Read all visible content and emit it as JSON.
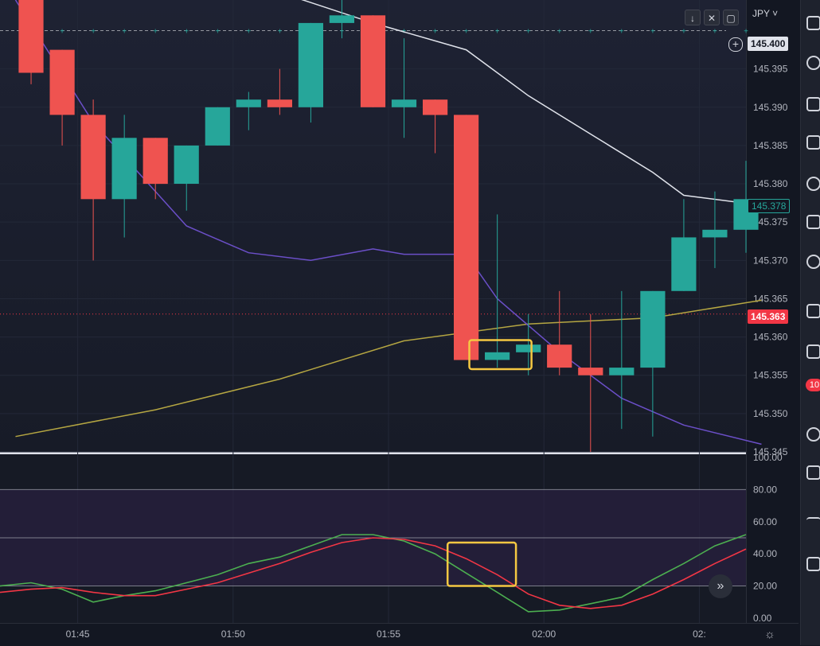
{
  "currency_label": "JPY",
  "chart_controls": {
    "down_icon": "arrow-down-icon",
    "collapse_icon": "collapse-icon",
    "fullscreen_icon": "fullscreen-icon"
  },
  "price_labels": {
    "crosshair_price": "145.400",
    "current_price": "145.378",
    "marker_price": "145.363"
  },
  "colors": {
    "bull": "#26a69a",
    "bear": "#ef5350",
    "ma_fast": "#6b4fc8",
    "ma_slow": "#e0e3eb",
    "ma_long": "#b5a642",
    "osc_k": "#4caf50",
    "osc_d": "#f23645",
    "highlight": "#f5c842",
    "current_price_bg": "#f23645"
  },
  "badge_count": "10",
  "chart_data": [
    {
      "type": "candlestick",
      "name": "price",
      "time_labels": [
        "01:45",
        "01:50",
        "01:55",
        "02:00",
        "02:"
      ],
      "y_ticks": [
        "145.395",
        "145.390",
        "145.385",
        "145.380",
        "145.375",
        "145.370",
        "145.365",
        "145.360",
        "145.355",
        "145.350",
        "145.345"
      ],
      "ylim": [
        145.345,
        145.404
      ],
      "bar_index_range": [
        -0.5,
        23.5
      ],
      "candles": [
        {
          "o": 145.4045,
          "h": 145.4045,
          "l": 145.393,
          "c": 145.3945
        },
        {
          "o": 145.3975,
          "h": 145.3975,
          "l": 145.385,
          "c": 145.389
        },
        {
          "o": 145.389,
          "h": 145.391,
          "l": 145.37,
          "c": 145.378
        },
        {
          "o": 145.378,
          "h": 145.389,
          "l": 145.373,
          "c": 145.386
        },
        {
          "o": 145.386,
          "h": 145.386,
          "l": 145.378,
          "c": 145.38
        },
        {
          "o": 145.38,
          "h": 145.385,
          "l": 145.3765,
          "c": 145.385
        },
        {
          "o": 145.385,
          "h": 145.39,
          "l": 145.385,
          "c": 145.39
        },
        {
          "o": 145.39,
          "h": 145.392,
          "l": 145.387,
          "c": 145.391
        },
        {
          "o": 145.391,
          "h": 145.395,
          "l": 145.389,
          "c": 145.39
        },
        {
          "o": 145.39,
          "h": 145.401,
          "l": 145.388,
          "c": 145.401
        },
        {
          "o": 145.401,
          "h": 145.404,
          "l": 145.399,
          "c": 145.402
        },
        {
          "o": 145.402,
          "h": 145.402,
          "l": 145.39,
          "c": 145.39
        },
        {
          "o": 145.39,
          "h": 145.399,
          "l": 145.386,
          "c": 145.391
        },
        {
          "o": 145.391,
          "h": 145.391,
          "l": 145.384,
          "c": 145.389
        },
        {
          "o": 145.389,
          "h": 145.389,
          "l": 145.357,
          "c": 145.357
        },
        {
          "o": 145.357,
          "h": 145.376,
          "l": 145.356,
          "c": 145.358
        },
        {
          "o": 145.358,
          "h": 145.363,
          "l": 145.355,
          "c": 145.359
        },
        {
          "o": 145.359,
          "h": 145.366,
          "l": 145.355,
          "c": 145.356
        },
        {
          "o": 145.356,
          "h": 145.363,
          "l": 145.345,
          "c": 145.355
        },
        {
          "o": 145.355,
          "h": 145.366,
          "l": 145.348,
          "c": 145.356
        },
        {
          "o": 145.356,
          "h": 145.366,
          "l": 145.347,
          "c": 145.366
        },
        {
          "o": 145.366,
          "h": 145.378,
          "l": 145.366,
          "c": 145.373
        },
        {
          "o": 145.373,
          "h": 145.379,
          "l": 145.369,
          "c": 145.374
        },
        {
          "o": 145.374,
          "h": 145.383,
          "l": 145.371,
          "c": 145.378
        }
      ],
      "ma_fast": [
        [
          -0.5,
          145.404
        ],
        [
          2,
          145.388
        ],
        [
          5,
          145.3745
        ],
        [
          7,
          145.371
        ],
        [
          9,
          145.37
        ],
        [
          11,
          145.3715
        ],
        [
          12,
          145.3708
        ],
        [
          14,
          145.3708
        ],
        [
          15,
          145.365
        ],
        [
          17,
          145.358
        ],
        [
          19,
          145.352
        ],
        [
          21,
          145.3485
        ],
        [
          23.5,
          145.346
        ]
      ],
      "ma_slow": [
        [
          8,
          145.405
        ],
        [
          11,
          145.401
        ],
        [
          14,
          145.3975
        ],
        [
          16,
          145.3915
        ],
        [
          18,
          145.3865
        ],
        [
          20,
          145.3815
        ],
        [
          21,
          145.3785
        ],
        [
          23.5,
          145.3772
        ]
      ],
      "ma_long": [
        [
          -0.5,
          145.347
        ],
        [
          4,
          145.3505
        ],
        [
          8,
          145.3545
        ],
        [
          12,
          145.3595
        ],
        [
          16,
          145.3617
        ],
        [
          20,
          145.3625
        ],
        [
          23.5,
          145.3648
        ]
      ],
      "highlight_box": {
        "x0": 14.6,
        "x1": 16.6,
        "y0": 145.3596,
        "y1": 145.3558
      }
    },
    {
      "type": "line",
      "name": "oscillator",
      "y_ticks": [
        "100.00",
        "80.00",
        "60.00",
        "40.00",
        "20.00",
        "0.00"
      ],
      "ylim": [
        -3,
        102
      ],
      "bands": [
        20,
        50,
        80
      ],
      "series": [
        {
          "key": "k",
          "values": [
            20,
            22,
            18,
            10,
            14,
            17,
            22,
            27,
            34,
            38,
            45,
            52,
            52,
            48,
            40,
            28,
            16,
            4,
            5,
            9,
            13,
            24,
            34,
            45,
            52
          ]
        },
        {
          "key": "d",
          "values": [
            16,
            18,
            19,
            16,
            14,
            14,
            18,
            22,
            28,
            34,
            41,
            47,
            50,
            49,
            45,
            37,
            27,
            15,
            8,
            6,
            8,
            15,
            24,
            34,
            43
          ]
        }
      ],
      "highlight_box": {
        "x0": 14.4,
        "x1": 16.6,
        "y0": 47,
        "y1": 20
      }
    }
  ]
}
